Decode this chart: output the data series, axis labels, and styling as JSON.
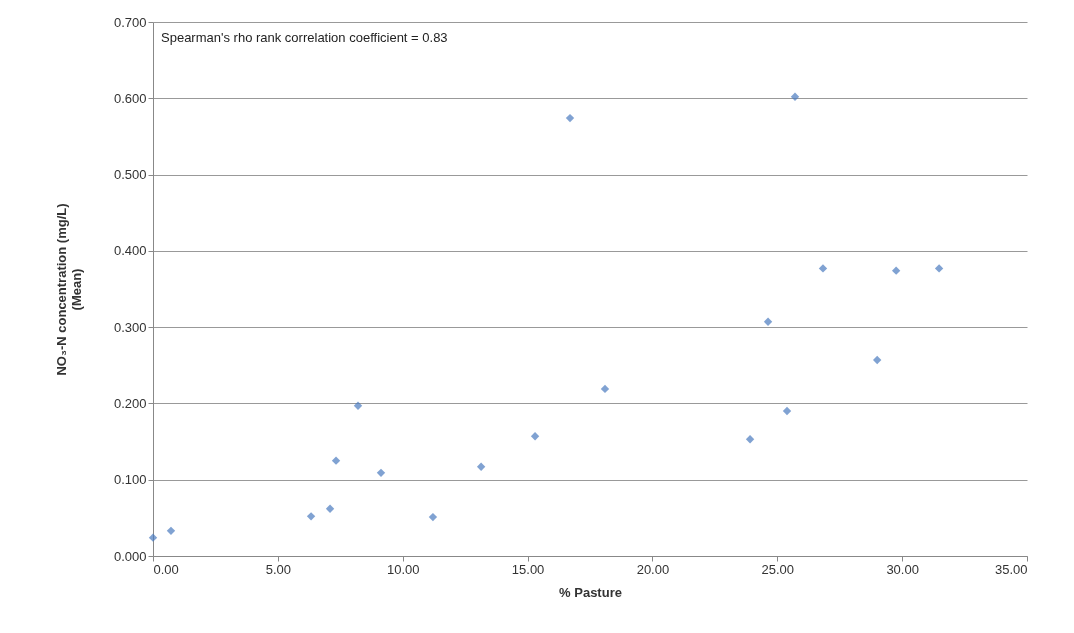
{
  "chart_data": {
    "type": "scatter",
    "xlabel": "% Pasture",
    "ylabel": "NO₃-N concentration (mg/L)\n(Mean)",
    "annotations": [
      "Spearman's rho rank correlation coefficient = 0.83"
    ],
    "x": [
      0,
      0.72,
      6.33,
      7.09,
      7.33,
      8.21,
      9.13,
      11.21,
      13.14,
      15.3,
      16.7,
      18.1,
      23.91,
      24.63,
      25.39,
      25.71,
      26.83,
      29.0,
      29.76,
      31.48
    ],
    "series": [
      {
        "color": "#4a7bbf",
        "values": [
          0.024,
          0.033,
          0.052,
          0.062,
          0.125,
          0.197,
          0.109,
          0.051,
          0.117,
          0.157,
          0.574,
          0.219,
          0.153,
          0.307,
          0.19,
          0.602,
          0.377,
          0.257,
          0.374,
          0.377
        ]
      }
    ],
    "xlim": [
      0,
      35
    ],
    "ylim": [
      0,
      0.7
    ],
    "xticks": [
      {
        "value": 0,
        "label": "0.00"
      },
      {
        "value": 5,
        "label": "5.00"
      },
      {
        "value": 10,
        "label": "10.00"
      },
      {
        "value": 15,
        "label": "15.00"
      },
      {
        "value": 20,
        "label": "20.00"
      },
      {
        "value": 25,
        "label": "25.00"
      },
      {
        "value": 30,
        "label": "30.00"
      },
      {
        "value": 35,
        "label": "35.00"
      }
    ],
    "yticks": [
      {
        "value": 0,
        "label": "0.000"
      },
      {
        "value": 0.1,
        "label": "0.100"
      },
      {
        "value": 0.2,
        "label": "0.200"
      },
      {
        "value": 0.3,
        "label": "0.300"
      },
      {
        "value": 0.4,
        "label": "0.400"
      },
      {
        "value": 0.5,
        "label": "0.500"
      },
      {
        "value": 0.6,
        "label": "0.600"
      },
      {
        "value": 0.7,
        "label": "0.700"
      }
    ],
    "grid": "y",
    "marker": "diamond"
  }
}
